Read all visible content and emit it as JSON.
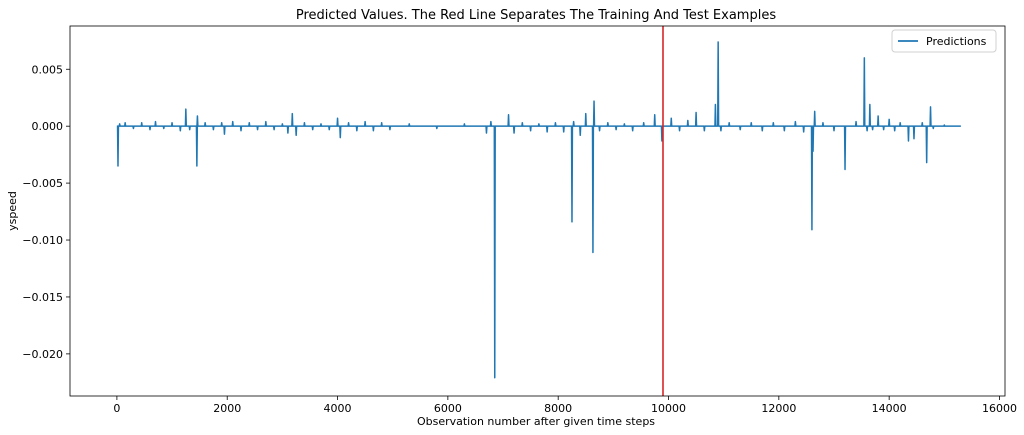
{
  "chart_data": {
    "type": "line",
    "title": "Predicted Values. The Red Line Separates The Training And Test Examples",
    "xlabel": "Observation number after given time steps",
    "ylabel": "yspeed",
    "xlim": [
      -850,
      16100
    ],
    "ylim": [
      -0.0237,
      0.0088
    ],
    "x_ticks": [
      0,
      2000,
      4000,
      6000,
      8000,
      10000,
      12000,
      14000,
      16000
    ],
    "x_tick_labels": [
      "0",
      "2000",
      "4000",
      "6000",
      "8000",
      "10000",
      "12000",
      "14000",
      "16000"
    ],
    "y_ticks": [
      0.005,
      0.0,
      -0.005,
      -0.01,
      -0.015,
      -0.02
    ],
    "y_tick_labels": [
      "0.005",
      "0.000",
      "−0.005",
      "−0.010",
      "−0.015",
      "−0.020"
    ],
    "grid": false,
    "legend": {
      "position": "top-right",
      "entries": [
        "Predictions"
      ]
    },
    "split_line": {
      "x": 9900,
      "color": "#d62728"
    },
    "series": [
      {
        "name": "Predictions",
        "color": "#1f77b4",
        "baseline": 0.0,
        "x_end": 15300,
        "spikes": [
          [
            20,
            -0.0035
          ],
          [
            50,
            0.0002
          ],
          [
            150,
            0.0003
          ],
          [
            300,
            -0.0002
          ],
          [
            450,
            0.0003
          ],
          [
            600,
            -0.0003
          ],
          [
            700,
            0.0004
          ],
          [
            850,
            -0.0002
          ],
          [
            1000,
            0.0003
          ],
          [
            1150,
            -0.0004
          ],
          [
            1250,
            0.0015
          ],
          [
            1320,
            -0.0003
          ],
          [
            1450,
            -0.0035
          ],
          [
            1460,
            0.0009
          ],
          [
            1600,
            0.0003
          ],
          [
            1750,
            -0.0003
          ],
          [
            1900,
            0.0003
          ],
          [
            1950,
            -0.0007
          ],
          [
            2100,
            0.0004
          ],
          [
            2250,
            -0.0004
          ],
          [
            2400,
            0.0003
          ],
          [
            2550,
            -0.0003
          ],
          [
            2700,
            0.0004
          ],
          [
            2850,
            -0.0003
          ],
          [
            3000,
            0.0002
          ],
          [
            3100,
            -0.0006
          ],
          [
            3180,
            0.0011
          ],
          [
            3250,
            -0.0008
          ],
          [
            3400,
            0.0003
          ],
          [
            3550,
            -0.0003
          ],
          [
            3700,
            0.0002
          ],
          [
            3850,
            -0.0003
          ],
          [
            4000,
            0.0007
          ],
          [
            4050,
            -0.001
          ],
          [
            4200,
            0.0003
          ],
          [
            4350,
            -0.0004
          ],
          [
            4500,
            0.0004
          ],
          [
            4650,
            -0.0004
          ],
          [
            4800,
            0.0003
          ],
          [
            4950,
            -0.0003
          ],
          [
            5300,
            0.0002
          ],
          [
            5800,
            -0.0002
          ],
          [
            6300,
            0.0002
          ],
          [
            6700,
            -0.0006
          ],
          [
            6780,
            0.0004
          ],
          [
            6850,
            -0.0221
          ],
          [
            7100,
            0.001
          ],
          [
            7200,
            -0.0006
          ],
          [
            7350,
            0.0003
          ],
          [
            7500,
            -0.0004
          ],
          [
            7650,
            0.0002
          ],
          [
            7800,
            -0.0005
          ],
          [
            7950,
            0.0003
          ],
          [
            8100,
            -0.0005
          ],
          [
            8250,
            -0.0084
          ],
          [
            8280,
            0.0004
          ],
          [
            8400,
            -0.0008
          ],
          [
            8500,
            0.0011
          ],
          [
            8630,
            -0.0111
          ],
          [
            8650,
            0.0022
          ],
          [
            8750,
            -0.0004
          ],
          [
            8900,
            0.0003
          ],
          [
            9050,
            -0.0003
          ],
          [
            9200,
            0.0002
          ],
          [
            9350,
            -0.0004
          ],
          [
            9550,
            0.0003
          ],
          [
            9750,
            0.001
          ],
          [
            9880,
            -0.0013
          ],
          [
            10050,
            0.0007
          ],
          [
            10200,
            -0.0004
          ],
          [
            10350,
            0.0005
          ],
          [
            10500,
            0.0012
          ],
          [
            10650,
            -0.0004
          ],
          [
            10850,
            0.0019
          ],
          [
            10900,
            0.0074
          ],
          [
            10950,
            -0.0004
          ],
          [
            11100,
            0.0003
          ],
          [
            11300,
            -0.0003
          ],
          [
            11500,
            0.0003
          ],
          [
            11700,
            -0.0004
          ],
          [
            11900,
            0.0003
          ],
          [
            12100,
            -0.0004
          ],
          [
            12300,
            0.0004
          ],
          [
            12450,
            -0.0005
          ],
          [
            12600,
            -0.0091
          ],
          [
            12620,
            -0.0022
          ],
          [
            12650,
            0.0013
          ],
          [
            12800,
            0.0003
          ],
          [
            13000,
            -0.0004
          ],
          [
            13200,
            -0.0038
          ],
          [
            13400,
            0.0004
          ],
          [
            13550,
            0.006
          ],
          [
            13600,
            -0.0004
          ],
          [
            13650,
            0.0019
          ],
          [
            13700,
            -0.0003
          ],
          [
            13800,
            0.0009
          ],
          [
            13900,
            -0.0003
          ],
          [
            14000,
            0.0006
          ],
          [
            14100,
            -0.0004
          ],
          [
            14200,
            0.0003
          ],
          [
            14350,
            -0.0013
          ],
          [
            14450,
            -0.0011
          ],
          [
            14600,
            0.0003
          ],
          [
            14680,
            -0.0032
          ],
          [
            14750,
            0.0017
          ],
          [
            14800,
            -0.0002
          ],
          [
            15000,
            0.0001
          ]
        ]
      }
    ]
  }
}
